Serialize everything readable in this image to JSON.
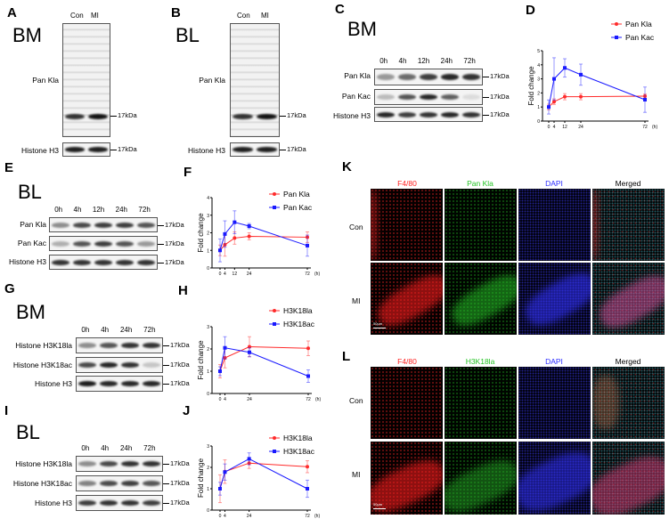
{
  "panels": {
    "A": {
      "letter": "A",
      "tissue": "BM",
      "lanes": [
        "Con",
        "MI"
      ],
      "rows": [
        "Pan Kla",
        "Histone H3"
      ],
      "marker": "17kDa"
    },
    "B": {
      "letter": "B",
      "tissue": "BL",
      "lanes": [
        "Con",
        "MI"
      ],
      "rows": [
        "Pan Kla",
        "Histone H3"
      ],
      "marker": "17kDa"
    },
    "C": {
      "letter": "C",
      "tissue": "BM",
      "lanes": [
        "0h",
        "4h",
        "12h",
        "24h",
        "72h"
      ],
      "rows": [
        "Pan Kla",
        "Pan Kac",
        "Histone H3"
      ],
      "marker": "17kDa"
    },
    "D": {
      "letter": "D"
    },
    "E": {
      "letter": "E",
      "tissue": "BL",
      "lanes": [
        "0h",
        "4h",
        "12h",
        "24h",
        "72h"
      ],
      "rows": [
        "Pan Kla",
        "Pan Kac",
        "Histone H3"
      ],
      "marker": "17kDa"
    },
    "F": {
      "letter": "F"
    },
    "G": {
      "letter": "G",
      "tissue": "BM",
      "lanes": [
        "0h",
        "4h",
        "24h",
        "72h"
      ],
      "rows": [
        "Histone H3K18la",
        "Histone H3K18ac",
        "Histone H3"
      ],
      "marker": "17kDa"
    },
    "H": {
      "letter": "H"
    },
    "I": {
      "letter": "I",
      "tissue": "BL",
      "lanes": [
        "0h",
        "4h",
        "24h",
        "72h"
      ],
      "rows": [
        "Histone H3K18la",
        "Histone H3K18ac",
        "Histone H3"
      ],
      "marker": "17kDa"
    },
    "J": {
      "letter": "J"
    },
    "K": {
      "letter": "K",
      "columns": [
        "F4/80",
        "Pan Kla",
        "DAPI",
        "Merged"
      ],
      "rows": [
        "Con",
        "MI"
      ],
      "scale_bar": "50μm"
    },
    "L": {
      "letter": "L",
      "columns": [
        "F4/80",
        "H3K18la",
        "DAPI",
        "Merged"
      ],
      "rows": [
        "Con",
        "MI"
      ],
      "scale_bar": "50μm"
    }
  },
  "colors": {
    "red": "#ff2020",
    "green": "#22c322",
    "blue": "#2a2aff",
    "series_red": "#ff2b2b",
    "series_blue": "#1a1aff"
  },
  "chart_data": [
    {
      "panel": "D",
      "type": "line",
      "xlabel": "",
      "x_unit": "(h)",
      "ylabel": "Fold change",
      "x": [
        0,
        4,
        12,
        24,
        72
      ],
      "xticks": [
        0,
        4,
        12,
        24,
        72
      ],
      "ylim": [
        0,
        5
      ],
      "yticks": [
        0,
        1,
        2,
        3,
        4,
        5
      ],
      "legend": "top-right",
      "series": [
        {
          "name": "Pan Kla",
          "color": "#ff2b2b",
          "marker": "circle",
          "values": [
            1.0,
            1.38,
            1.73,
            1.73,
            1.77
          ],
          "errors": [
            0.2,
            0.2,
            0.22,
            0.22,
            0.15
          ]
        },
        {
          "name": "Pan Kac",
          "color": "#1a1aff",
          "marker": "square",
          "values": [
            1.0,
            3.0,
            3.78,
            3.3,
            1.52
          ],
          "errors": [
            0.5,
            1.5,
            0.65,
            0.75,
            0.9
          ]
        }
      ]
    },
    {
      "panel": "F",
      "type": "line",
      "xlabel": "",
      "x_unit": "(h)",
      "ylabel": "Fold change",
      "x": [
        0,
        4,
        12,
        24,
        72
      ],
      "xticks": [
        0,
        4,
        12,
        24,
        72
      ],
      "ylim": [
        0,
        4
      ],
      "yticks": [
        0,
        1,
        2,
        3,
        4
      ],
      "legend": "top-right",
      "series": [
        {
          "name": "Pan Kla",
          "color": "#ff2b2b",
          "marker": "circle",
          "values": [
            1.0,
            1.32,
            1.7,
            1.8,
            1.75
          ],
          "errors": [
            0.3,
            0.65,
            0.35,
            0.2,
            0.3
          ]
        },
        {
          "name": "Pan Kac",
          "color": "#1a1aff",
          "marker": "square",
          "values": [
            1.0,
            1.93,
            2.6,
            2.38,
            1.27
          ],
          "errors": [
            0.65,
            0.75,
            0.65,
            0.15,
            0.6
          ]
        }
      ]
    },
    {
      "panel": "H",
      "type": "line",
      "xlabel": "",
      "x_unit": "(h)",
      "ylabel": "Fold change",
      "x": [
        0,
        4,
        24,
        72
      ],
      "xticks": [
        0,
        4,
        24,
        72
      ],
      "ylim": [
        0,
        3
      ],
      "yticks": [
        0,
        1,
        2,
        3
      ],
      "legend": "top-right",
      "series": [
        {
          "name": "H3K18la",
          "color": "#ff2b2b",
          "marker": "circle",
          "values": [
            1.0,
            1.6,
            2.1,
            2.03
          ],
          "errors": [
            0.3,
            0.45,
            0.45,
            0.33
          ]
        },
        {
          "name": "H3K18ac",
          "color": "#1a1aff",
          "marker": "square",
          "values": [
            1.0,
            2.05,
            1.85,
            0.78
          ],
          "errors": [
            0.2,
            0.5,
            0.2,
            0.28
          ]
        }
      ]
    },
    {
      "panel": "J",
      "type": "line",
      "xlabel": "",
      "x_unit": "(h)",
      "ylabel": "Fold change",
      "x": [
        0,
        4,
        24,
        72
      ],
      "xticks": [
        0,
        4,
        24,
        72
      ],
      "ylim": [
        0,
        3
      ],
      "yticks": [
        0,
        1,
        2,
        3
      ],
      "legend": "top-right",
      "series": [
        {
          "name": "H3K18la",
          "color": "#ff2b2b",
          "marker": "circle",
          "values": [
            1.0,
            1.8,
            2.2,
            2.03
          ],
          "errors": [
            0.65,
            0.55,
            0.25,
            0.28
          ]
        },
        {
          "name": "H3K18ac",
          "color": "#1a1aff",
          "marker": "square",
          "values": [
            1.0,
            1.78,
            2.4,
            1.0
          ],
          "errors": [
            0.3,
            0.38,
            0.28,
            0.4
          ]
        }
      ]
    }
  ]
}
